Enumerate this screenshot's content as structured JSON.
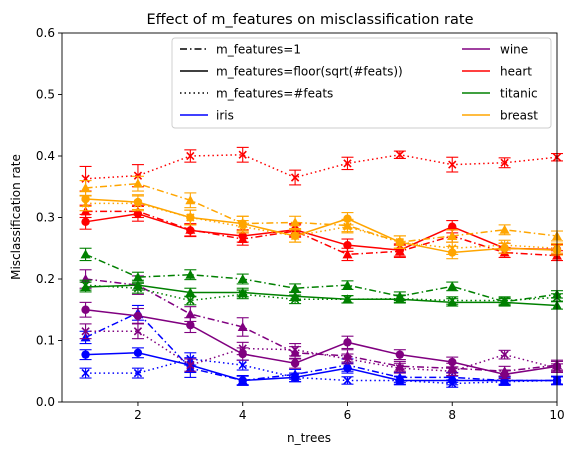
{
  "chart_data": {
    "type": "line",
    "title": "Effect of m_features on misclassification rate",
    "xlabel": "n_trees",
    "ylabel": "Misclassification rate",
    "xlim": [
      0.55,
      10
    ],
    "ylim": [
      0,
      0.6
    ],
    "xticks": [
      "2",
      "4",
      "6",
      "8",
      "10"
    ],
    "yticks": [
      "0.0",
      "0.1",
      "0.2",
      "0.3",
      "0.4",
      "0.5",
      "0.6"
    ],
    "x": [
      1,
      2,
      3,
      4,
      5,
      6,
      7,
      8,
      9,
      10
    ],
    "legend_placement": "top-right",
    "legend": {
      "styles": [
        {
          "label": "m_features=1",
          "dash": "dashdot"
        },
        {
          "label": "m_features=floor(sqrt(#feats))",
          "dash": "solid"
        },
        {
          "label": "m_features=#feats",
          "dash": "dotted"
        }
      ],
      "datasets": [
        {
          "label": "iris",
          "color": "#0000ff"
        },
        {
          "label": "wine",
          "color": "#800080"
        },
        {
          "label": "heart",
          "color": "#ff0000"
        },
        {
          "label": "titanic",
          "color": "#008000"
        },
        {
          "label": "breast",
          "color": "#ffa500"
        }
      ]
    },
    "series": [
      {
        "dataset": "iris",
        "style": "m_features=1",
        "color": "#0000ff",
        "dash": "dashdot",
        "marker": "triangle",
        "values": [
          0.105,
          0.145,
          0.055,
          0.035,
          0.045,
          0.06,
          0.04,
          0.04,
          0.035,
          0.035
        ],
        "err": [
          0.01,
          0.012,
          0.015,
          0.008,
          0.008,
          0.01,
          0.008,
          0.008,
          0.007,
          0.007
        ]
      },
      {
        "dataset": "iris",
        "style": "m_features=floor(sqrt(#feats))",
        "color": "#0000ff",
        "dash": "solid",
        "marker": "circle",
        "values": [
          0.077,
          0.08,
          0.06,
          0.035,
          0.04,
          0.055,
          0.035,
          0.035,
          0.035,
          0.035
        ],
        "err": [
          0.008,
          0.008,
          0.012,
          0.007,
          0.007,
          0.008,
          0.007,
          0.007,
          0.006,
          0.006
        ]
      },
      {
        "dataset": "iris",
        "style": "m_features=#feats",
        "color": "#0000ff",
        "dash": "dotted",
        "marker": "x",
        "values": [
          0.047,
          0.047,
          0.07,
          0.06,
          0.04,
          0.035,
          0.035,
          0.03,
          0.033,
          0.035
        ],
        "err": [
          0.008,
          0.008,
          0.01,
          0.008,
          0.007,
          0.006,
          0.006,
          0.006,
          0.006,
          0.006
        ]
      },
      {
        "dataset": "wine",
        "style": "m_features=1",
        "color": "#800080",
        "dash": "dashdot",
        "marker": "triangle",
        "values": [
          0.2,
          0.19,
          0.143,
          0.122,
          0.08,
          0.075,
          0.058,
          0.055,
          0.05,
          0.06
        ],
        "err": [
          0.015,
          0.015,
          0.012,
          0.015,
          0.01,
          0.01,
          0.008,
          0.008,
          0.008,
          0.008
        ]
      },
      {
        "dataset": "wine",
        "style": "m_features=floor(sqrt(#feats))",
        "color": "#800080",
        "dash": "solid",
        "marker": "circle",
        "values": [
          0.15,
          0.14,
          0.125,
          0.078,
          0.063,
          0.097,
          0.077,
          0.065,
          0.045,
          0.058
        ],
        "err": [
          0.012,
          0.012,
          0.012,
          0.01,
          0.008,
          0.01,
          0.008,
          0.008,
          0.007,
          0.008
        ]
      },
      {
        "dataset": "wine",
        "style": "m_features=#feats",
        "color": "#800080",
        "dash": "dotted",
        "marker": "x",
        "values": [
          0.115,
          0.115,
          0.06,
          0.087,
          0.085,
          0.07,
          0.055,
          0.05,
          0.077,
          0.055
        ],
        "err": [
          0.012,
          0.012,
          0.01,
          0.01,
          0.01,
          0.008,
          0.008,
          0.007,
          0.007,
          0.007
        ]
      },
      {
        "dataset": "heart",
        "style": "m_features=1",
        "color": "#ff0000",
        "dash": "dashdot",
        "marker": "triangle",
        "values": [
          0.31,
          0.31,
          0.28,
          0.265,
          0.278,
          0.24,
          0.245,
          0.27,
          0.243,
          0.238
        ],
        "err": [
          0.01,
          0.01,
          0.01,
          0.01,
          0.01,
          0.01,
          0.01,
          0.01,
          0.008,
          0.008
        ]
      },
      {
        "dataset": "heart",
        "style": "m_features=floor(sqrt(#feats))",
        "color": "#ff0000",
        "dash": "solid",
        "marker": "circle",
        "values": [
          0.293,
          0.306,
          0.279,
          0.27,
          0.28,
          0.255,
          0.247,
          0.285,
          0.25,
          0.248
        ],
        "err": [
          0.012,
          0.012,
          0.01,
          0.01,
          0.01,
          0.01,
          0.01,
          0.01,
          0.008,
          0.008
        ]
      },
      {
        "dataset": "heart",
        "style": "m_features=#feats",
        "color": "#ff0000",
        "dash": "dotted",
        "marker": "x",
        "values": [
          0.363,
          0.368,
          0.4,
          0.402,
          0.365,
          0.388,
          0.402,
          0.386,
          0.389,
          0.398
        ],
        "err": [
          0.02,
          0.018,
          0.01,
          0.012,
          0.012,
          0.01,
          0.006,
          0.012,
          0.008,
          0.006
        ]
      },
      {
        "dataset": "titanic",
        "style": "m_features=1",
        "color": "#008000",
        "dash": "dashdot",
        "marker": "triangle",
        "values": [
          0.24,
          0.203,
          0.207,
          0.2,
          0.185,
          0.19,
          0.172,
          0.188,
          0.163,
          0.175
        ],
        "err": [
          0.01,
          0.008,
          0.008,
          0.008,
          0.007,
          0.007,
          0.007,
          0.007,
          0.006,
          0.006
        ]
      },
      {
        "dataset": "titanic",
        "style": "m_features=floor(sqrt(#feats))",
        "color": "#008000",
        "dash": "solid",
        "marker": "triangle",
        "values": [
          0.187,
          0.19,
          0.178,
          0.178,
          0.172,
          0.167,
          0.167,
          0.162,
          0.162,
          0.157
        ],
        "err": [
          0.008,
          0.008,
          0.007,
          0.007,
          0.007,
          0.006,
          0.006,
          0.006,
          0.006,
          0.006
        ]
      },
      {
        "dataset": "titanic",
        "style": "m_features=#feats",
        "color": "#008000",
        "dash": "dotted",
        "marker": "x",
        "values": [
          0.19,
          0.185,
          0.165,
          0.175,
          0.167,
          0.167,
          0.168,
          0.165,
          0.165,
          0.17
        ],
        "err": [
          0.008,
          0.008,
          0.007,
          0.007,
          0.007,
          0.006,
          0.006,
          0.006,
          0.006,
          0.006
        ]
      },
      {
        "dataset": "breast",
        "style": "m_features=1",
        "color": "#ffa500",
        "dash": "dashdot",
        "marker": "triangle",
        "values": [
          0.348,
          0.355,
          0.328,
          0.29,
          0.292,
          0.287,
          0.26,
          0.27,
          0.28,
          0.27
        ],
        "err": [
          0.012,
          0.012,
          0.012,
          0.012,
          0.01,
          0.01,
          0.01,
          0.01,
          0.008,
          0.008
        ]
      },
      {
        "dataset": "breast",
        "style": "m_features=floor(sqrt(#feats))",
        "color": "#ffa500",
        "dash": "solid",
        "marker": "circle",
        "values": [
          0.33,
          0.325,
          0.3,
          0.29,
          0.27,
          0.298,
          0.26,
          0.243,
          0.25,
          0.247
        ],
        "err": [
          0.012,
          0.012,
          0.012,
          0.012,
          0.01,
          0.01,
          0.01,
          0.01,
          0.008,
          0.008
        ]
      },
      {
        "dataset": "breast",
        "style": "m_features=#feats",
        "color": "#ffa500",
        "dash": "dotted",
        "marker": "x",
        "values": [
          0.323,
          0.323,
          0.3,
          0.285,
          0.27,
          0.285,
          0.26,
          0.25,
          0.255,
          0.25
        ],
        "err": [
          0.012,
          0.012,
          0.012,
          0.01,
          0.01,
          0.01,
          0.01,
          0.01,
          0.008,
          0.008
        ]
      }
    ]
  }
}
